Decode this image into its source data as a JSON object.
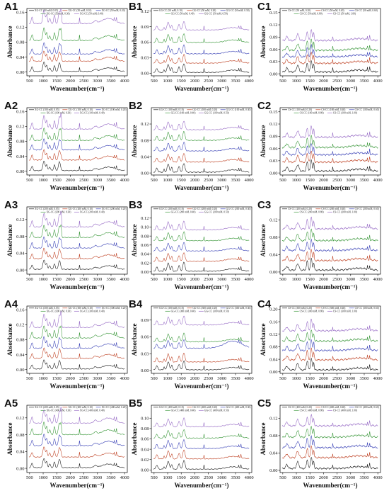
{
  "colors": [
    "#222222",
    "#c0472a",
    "#3f47b8",
    "#3f9a3f",
    "#9a6fc7"
  ],
  "chart_data": [
    {
      "id": "A1",
      "type": "line",
      "xlabel": "Wavenumber(cm⁻¹)",
      "ylabel": "Absorbance",
      "xlim": [
        400,
        4100
      ],
      "xticks": [
        500,
        1000,
        1500,
        2000,
        2500,
        3000,
        3500,
        4000
      ],
      "ylim": [
        -0.01,
        0.17
      ],
      "yticks": [
        0.0,
        0.04,
        0.08,
        0.12,
        0.16
      ],
      "ytick_labels": [
        "0.00",
        "0.04",
        "0.08",
        "0.12",
        "0.16"
      ],
      "offsets": [
        0.0,
        0.027,
        0.046,
        0.082,
        0.127
      ],
      "legend": [
        "XG-CC (50 mM, 0.05)",
        "XG-CC (50 mM, 0.10)",
        "XG-CC (50 mM, 0.20)",
        "XG-CC (50 mM, 0.30)",
        "XG-CC (50 mM, 0.40)"
      ],
      "profile": "A"
    },
    {
      "id": "B1",
      "type": "line",
      "xlabel": "Wavenumber(cm⁻¹)",
      "ylabel": "Absorbance",
      "xlim": [
        400,
        4100
      ],
      "xticks": [
        500,
        1000,
        1500,
        2000,
        2500,
        3000,
        3500,
        4000
      ],
      "ylim": [
        -0.005,
        0.125
      ],
      "yticks": [
        0.0,
        0.03,
        0.06,
        0.09,
        0.12
      ],
      "ytick_labels": [
        "0.00",
        "0.03",
        "0.06",
        "0.09",
        "0.12"
      ],
      "offsets": [
        0.0,
        0.018,
        0.036,
        0.058,
        0.082
      ],
      "legend": [
        "GG-CC (50 mM, 0.10)",
        "GG-CC (50 mM, 0.20)",
        "GG-CC (50 mM, 0.30)",
        "GG-CC (50 mM, 0.40)",
        "GG-CC (50 mM, 0.50)"
      ],
      "profile": "B"
    },
    {
      "id": "C1",
      "type": "line",
      "xlabel": "Wavenumber(cm⁻¹)",
      "ylabel": "Absorbance",
      "xlim": [
        400,
        4100
      ],
      "xticks": [
        500,
        1000,
        1500,
        2000,
        2500,
        3000,
        3500,
        4000
      ],
      "ylim": [
        -0.005,
        0.16
      ],
      "yticks": [
        0.0,
        0.03,
        0.06,
        0.09,
        0.12,
        0.15
      ],
      "ytick_labels": [
        "0.00",
        "0.03",
        "0.06",
        "0.09",
        "0.12",
        "0.15"
      ],
      "offsets": [
        0.0,
        0.021,
        0.037,
        0.053,
        0.077
      ],
      "legend": [
        "CS-CC (50 mM, 0.20)",
        "CS-CC (50 mM, 0.40)",
        "CS-CC (50 mM, 0.60)",
        "CS-CC (50 mM, 0.80)",
        "CS-CC (50 mM, 1.00)"
      ],
      "profile": "C"
    },
    {
      "id": "A2",
      "type": "line",
      "xlabel": "Wavenumber(cm⁻¹)",
      "ylabel": "Absorbance",
      "xlim": [
        400,
        4100
      ],
      "xticks": [
        500,
        1000,
        1500,
        2000,
        2500,
        3000,
        3500,
        4000
      ],
      "ylim": [
        -0.01,
        0.17
      ],
      "yticks": [
        0.0,
        0.04,
        0.08,
        0.12,
        0.16
      ],
      "ytick_labels": [
        "0.00",
        "0.04",
        "0.08",
        "0.12",
        "0.16"
      ],
      "offsets": [
        0.0,
        0.028,
        0.055,
        0.08,
        0.11
      ],
      "legend": [
        "XG-CC (100 mM, 0.05)",
        "XG-CC (100 mM, 0.10)",
        "XG-CC (100 mM, 0.20)",
        "XG-CC (100 mM, 0.30)",
        "XG-CC (100 mM, 0.40)"
      ],
      "profile": "A"
    },
    {
      "id": "B2",
      "type": "line",
      "xlabel": "Wavenumber(cm⁻¹)",
      "ylabel": "Absorbance",
      "xlim": [
        400,
        4100
      ],
      "xticks": [
        500,
        1000,
        1500,
        2000,
        2500,
        3000,
        3500,
        4000
      ],
      "ylim": [
        -0.005,
        0.16
      ],
      "yticks": [
        0.0,
        0.04,
        0.08,
        0.12
      ],
      "ytick_labels": [
        "0.00",
        "0.04",
        "0.08",
        "0.12"
      ],
      "offsets": [
        0.0,
        0.025,
        0.052,
        0.078,
        0.104
      ],
      "legend": [
        "GG-CC (100 mM, 0.10)",
        "GG-CC (100 mM, 0.20)",
        "GG-CC (100 mM, 0.30)",
        "GG-CC (100 mM, 0.40)",
        "GG-CC (100 mM, 0.50)"
      ],
      "profile": "B"
    },
    {
      "id": "C2",
      "type": "line",
      "xlabel": "Wavenumber(cm⁻¹)",
      "ylabel": "Absorbance",
      "xlim": [
        400,
        4100
      ],
      "xticks": [
        500,
        1000,
        1500,
        2000,
        2500,
        3000,
        3500,
        4000
      ],
      "ylim": [
        -0.005,
        0.16
      ],
      "yticks": [
        0.0,
        0.03,
        0.06,
        0.09,
        0.12,
        0.15
      ],
      "ytick_labels": [
        "0.00",
        "0.03",
        "0.06",
        "0.09",
        "0.12",
        "0.15"
      ],
      "offsets": [
        0.0,
        0.022,
        0.04,
        0.058,
        0.083
      ],
      "legend": [
        "CS-CC (100 mM, 0.20)",
        "CS-CC (100 mM, 0.40)",
        "CS-CC (100 mM, 0.60)",
        "CS-CC (100 mM, 0.80)",
        "CS-CC (100 mM, 1.00)"
      ],
      "profile": "C"
    },
    {
      "id": "A3",
      "type": "line",
      "xlabel": "Wavenumber(cm⁻¹)",
      "ylabel": "Absorbance",
      "xlim": [
        400,
        4100
      ],
      "xticks": [
        500,
        1000,
        1500,
        2000,
        2500,
        3000,
        3500,
        4000
      ],
      "ylim": [
        -0.01,
        0.15
      ],
      "yticks": [
        0.0,
        0.04,
        0.08,
        0.12
      ],
      "ytick_labels": [
        "0.00",
        "0.04",
        "0.08",
        "0.12"
      ],
      "offsets": [
        0.0,
        0.025,
        0.05,
        0.075,
        0.1
      ],
      "legend": [
        "XG-CC (200 mM, 0.05)",
        "XG-CC (200 mM, 0.10)",
        "XG-CC (200 mM, 0.20)",
        "XG-CC (200 mM, 0.30)",
        "XG-CC (200 mM, 0.40)"
      ],
      "profile": "A"
    },
    {
      "id": "B3",
      "type": "line",
      "xlabel": "Wavenumber(cm⁻¹)",
      "ylabel": "Absorbance",
      "xlim": [
        400,
        4100
      ],
      "xticks": [
        500,
        1000,
        1500,
        2000,
        2500,
        3000,
        3500,
        4000
      ],
      "ylim": [
        -0.005,
        0.145
      ],
      "yticks": [
        0.0,
        0.02,
        0.04,
        0.06,
        0.08,
        0.1,
        0.12
      ],
      "ytick_labels": [
        "0.00",
        "0.02",
        "0.04",
        "0.06",
        "0.08",
        "0.10",
        "0.12"
      ],
      "offsets": [
        0.0,
        0.022,
        0.045,
        0.068,
        0.092
      ],
      "legend": [
        "GG-CC (200 mM, 0.10)",
        "GG-CC (200 mM, 0.20)",
        "GG-CC (200 mM, 0.30)",
        "GG-CC (200 mM, 0.40)",
        "GG-CC (200 mM, 0.50)"
      ],
      "profile": "B"
    },
    {
      "id": "C3",
      "type": "line",
      "xlabel": "Wavenumber(cm⁻¹)",
      "ylabel": "Absorbance",
      "xlim": [
        400,
        4100
      ],
      "xticks": [
        500,
        1000,
        1500,
        2000,
        2500,
        3000,
        3500,
        4000
      ],
      "ylim": [
        -0.005,
        0.15
      ],
      "yticks": [
        0.0,
        0.04,
        0.08,
        0.12
      ],
      "ytick_labels": [
        "0.00",
        "0.04",
        "0.08",
        "0.12"
      ],
      "offsets": [
        0.0,
        0.022,
        0.045,
        0.068,
        0.095
      ],
      "legend": [
        "CS-CC (200 mM, 0.20)",
        "CS-CC (200 mM, 0.40)",
        "CS-CC (200 mM, 0.60)",
        "CS-CC (200 mM, 0.80)",
        "CS-CC (200 mM, 1.00)"
      ],
      "profile": "C"
    },
    {
      "id": "A4",
      "type": "line",
      "xlabel": "Wavenumber(cm⁻¹)",
      "ylabel": "Absorbance",
      "xlim": [
        400,
        4100
      ],
      "xticks": [
        500,
        1000,
        1500,
        2000,
        2500,
        3000,
        3500,
        4000
      ],
      "ylim": [
        -0.01,
        0.17
      ],
      "yticks": [
        0.0,
        0.04,
        0.08,
        0.12,
        0.16
      ],
      "ytick_labels": [
        "0.00",
        "0.04",
        "0.08",
        "0.12",
        "0.16"
      ],
      "offsets": [
        0.0,
        0.028,
        0.055,
        0.082,
        0.11
      ],
      "legend": [
        "XG-CC (300 mM, 0.05)",
        "XG-CC (300 mM, 0.10)",
        "XG-CC (300 mM, 0.20)",
        "XG-CC (300 mM, 0.30)",
        "XG-CC (300 mM, 0.40)"
      ],
      "profile": "A"
    },
    {
      "id": "B4",
      "type": "line",
      "xlabel": "Wavenumber(cm⁻¹)",
      "ylabel": "Absorbance",
      "xlim": [
        400,
        4100
      ],
      "xticks": [
        500,
        1000,
        1500,
        2000,
        2500,
        3000,
        3500,
        4000
      ],
      "ylim": [
        -0.005,
        0.115
      ],
      "yticks": [
        0.0,
        0.03,
        0.06,
        0.09
      ],
      "ytick_labels": [
        "0.00",
        "0.03",
        "0.06",
        "0.09"
      ],
      "offsets": [
        0.0,
        0.014,
        0.03,
        0.05,
        0.08
      ],
      "legend": [
        "GG-CC (300 mM, 0.10)",
        "GG-CC (300 mM, 0.20)",
        "GG-CC (300 mM, 0.30)",
        "GG-CC (300 mM, 0.40)",
        "GG-CC (300 mM, 0.50)"
      ],
      "profile": "B4"
    },
    {
      "id": "C4",
      "type": "line",
      "xlabel": "Wavenumber(cm⁻¹)",
      "ylabel": "Absorbance",
      "xlim": [
        400,
        4100
      ],
      "xticks": [
        500,
        1000,
        1500,
        2000,
        2500,
        3000,
        3500,
        4000
      ],
      "ylim": [
        -0.005,
        0.21
      ],
      "yticks": [
        0.0,
        0.04,
        0.08,
        0.12,
        0.16,
        0.2
      ],
      "ytick_labels": [
        "0.00",
        "0.04",
        "0.08",
        "0.12",
        "0.16",
        "0.20"
      ],
      "offsets": [
        0.0,
        0.032,
        0.062,
        0.092,
        0.125
      ],
      "legend": [
        "CS-CC (300 mM, 0.20)",
        "CS-CC (300 mM, 0.40)",
        "CS-CC (300 mM, 0.60)",
        "CS-CC (300 mM, 0.80)",
        "CS-CC (300 mM, 1.00)"
      ],
      "profile": "C"
    },
    {
      "id": "A5",
      "type": "line",
      "xlabel": "Wavenumber(cm⁻¹)",
      "ylabel": "Absorbance",
      "xlim": [
        400,
        4100
      ],
      "xticks": [
        500,
        1000,
        1500,
        2000,
        2500,
        3000,
        3500,
        4000
      ],
      "ylim": [
        -0.01,
        0.15
      ],
      "yticks": [
        0.0,
        0.04,
        0.08,
        0.12
      ],
      "ytick_labels": [
        "0.00",
        "0.04",
        "0.08",
        "0.12"
      ],
      "offsets": [
        0.0,
        0.025,
        0.052,
        0.078,
        0.105
      ],
      "legend": [
        "XG-CC (400 mM, 0.05)",
        "XG-CC (400 mM, 0.10)",
        "XG-CC (400 mM, 0.20)",
        "XG-CC (400 mM, 0.30)",
        "XG-CC (400 mM, 0.40)"
      ],
      "profile": "A"
    },
    {
      "id": "B5",
      "type": "line",
      "xlabel": "Wavenumber(cm⁻¹)",
      "ylabel": "Absorbance",
      "xlim": [
        400,
        4100
      ],
      "xticks": [
        500,
        1000,
        1500,
        2000,
        2500,
        3000,
        3500,
        4000
      ],
      "ylim": [
        -0.005,
        0.125
      ],
      "yticks": [
        0.0,
        0.02,
        0.04,
        0.06,
        0.08,
        0.1
      ],
      "ytick_labels": [
        "0.00",
        "0.02",
        "0.04",
        "0.06",
        "0.08",
        "0.10"
      ],
      "offsets": [
        0.0,
        0.02,
        0.04,
        0.06,
        0.082
      ],
      "legend": [
        "GG-CC (400 mM, 0.10)",
        "GG-CC (400 mM, 0.20)",
        "GG-CC (400 mM, 0.30)",
        "GG-CC (400 mM, 0.40)",
        "GG-CC (400 mM, 0.50)"
      ],
      "profile": "B"
    },
    {
      "id": "C5",
      "type": "line",
      "xlabel": "Wavenumber(cm⁻¹)",
      "ylabel": "Absorbance",
      "xlim": [
        400,
        4100
      ],
      "xticks": [
        500,
        1000,
        1500,
        2000,
        2500,
        3000,
        3500,
        4000
      ],
      "ylim": [
        -0.005,
        0.15
      ],
      "yticks": [
        0.0,
        0.04,
        0.08,
        0.12
      ],
      "ytick_labels": [
        "0.00",
        "0.04",
        "0.08",
        "0.12"
      ],
      "offsets": [
        0.0,
        0.025,
        0.048,
        0.072,
        0.098
      ],
      "legend": [
        "CS-CC (400 mM, 0.20)",
        "CS-CC (400 mM, 0.40)",
        "CS-CC (400 mM, 0.60)",
        "CS-CC (400 mM, 0.80)",
        "CS-CC (400 mM, 1.00)"
      ],
      "profile": "C"
    }
  ]
}
